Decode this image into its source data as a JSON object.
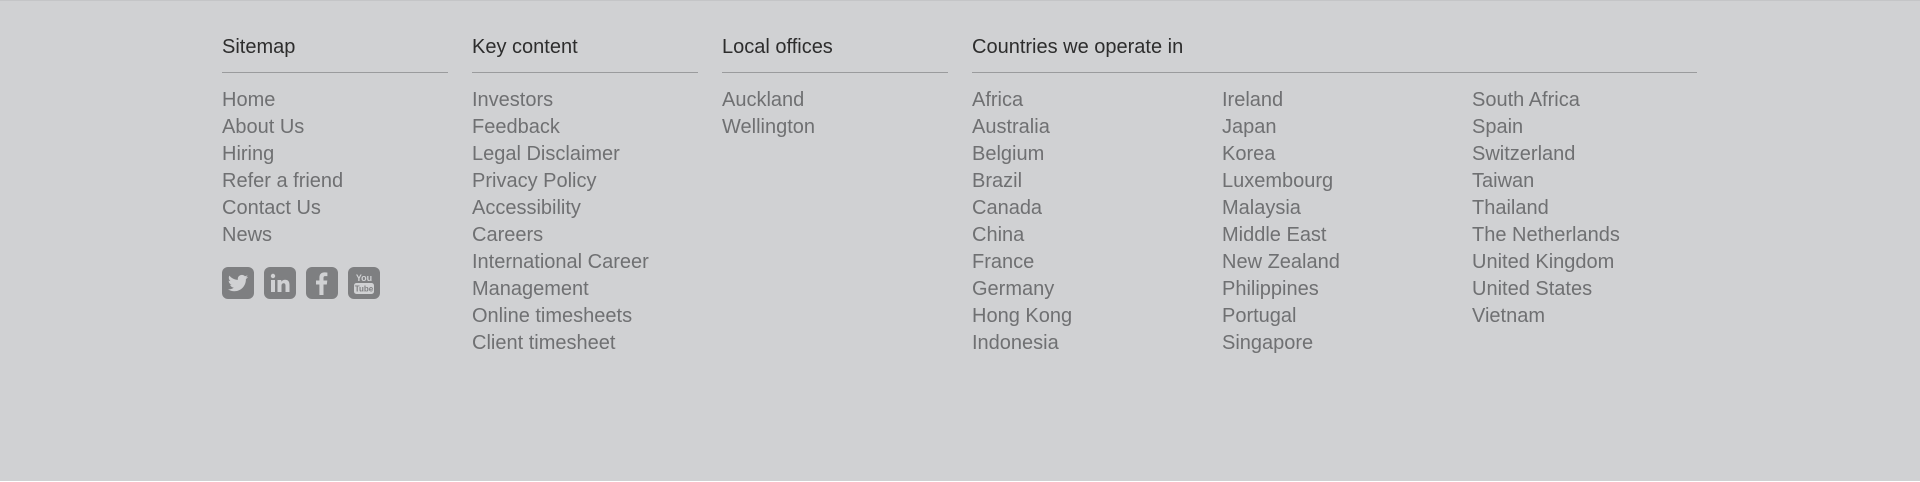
{
  "sitemap": {
    "title": "Sitemap",
    "links": [
      "Home",
      "About Us",
      "Hiring",
      "Refer a friend",
      "Contact Us",
      "News"
    ],
    "social": [
      "twitter-icon",
      "linkedin-icon",
      "facebook-icon",
      "youtube-icon"
    ]
  },
  "key_content": {
    "title": "Key content",
    "links": [
      "Investors",
      "Feedback",
      "Legal Disclaimer",
      "Privacy Policy",
      "Accessibility",
      "Careers",
      "International Career Management",
      "Online timesheets",
      "Client timesheet"
    ]
  },
  "local_offices": {
    "title": "Local offices",
    "links": [
      "Auckland",
      "Wellington"
    ]
  },
  "countries": {
    "title": "Countries we operate in",
    "col_a": [
      "Africa",
      "Australia",
      "Belgium",
      "Brazil",
      "Canada",
      "China",
      "France",
      "Germany",
      "Hong Kong",
      "Indonesia"
    ],
    "col_b": [
      "Ireland",
      "Japan",
      "Korea",
      "Luxembourg",
      "Malaysia",
      "Middle East",
      "New Zealand",
      "Philippines",
      "Portugal",
      "Singapore"
    ],
    "col_c": [
      "South Africa",
      "Spain",
      "Switzerland",
      "Taiwan",
      "Thailand",
      "The Netherlands",
      "United Kingdom",
      "United States",
      "Vietnam"
    ]
  },
  "colors": {
    "background": "#d0d1d3",
    "heading": "#2d2d2d",
    "link": "#6f7072",
    "icon": "#7e7f81"
  }
}
